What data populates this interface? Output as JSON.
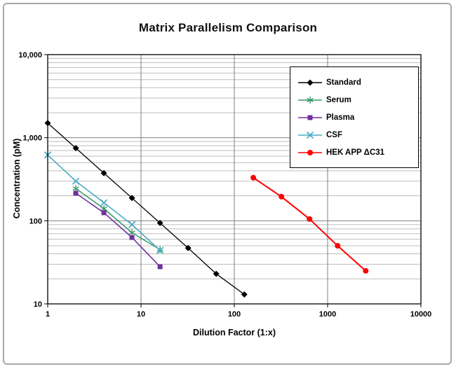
{
  "chart_data": {
    "type": "line",
    "title": "Matrix Parallelism Comparison",
    "xlabel": "Dilution Factor (1:x)",
    "ylabel": "Concentration (pM)",
    "xscale": "log",
    "yscale": "log",
    "xlim": [
      1,
      10000
    ],
    "ylim": [
      10,
      10000
    ],
    "xticks": {
      "values": [
        1,
        10,
        100,
        1000,
        10000
      ],
      "labels": [
        "1",
        "10",
        "100",
        "1000",
        "10000"
      ]
    },
    "yticks": {
      "values": [
        10,
        100,
        1000,
        10000
      ],
      "labels": [
        "10",
        "100",
        "1,000",
        "10,000"
      ]
    },
    "grid": {
      "horizontal_minor": true,
      "vertical_minor": false,
      "minor_color": "#bdbdbd",
      "major_color": "#7f7f7f"
    },
    "legend_position": "inside-top-right",
    "series": [
      {
        "name": "Standard",
        "marker": "diamond",
        "color": "#000000",
        "line_width": 1.3,
        "x": [
          1,
          2,
          4,
          8,
          16,
          32,
          64,
          128
        ],
        "y": [
          1500,
          750,
          375,
          188,
          94,
          47,
          23,
          13
        ]
      },
      {
        "name": "Serum",
        "marker": "star",
        "color": "#339966",
        "line_width": 1.5,
        "x": [
          2,
          4,
          8,
          16
        ],
        "y": [
          245,
          140,
          72,
          45
        ]
      },
      {
        "name": "Plasma",
        "marker": "square",
        "color": "#7030A0",
        "line_width": 1.6,
        "x": [
          2,
          4,
          8,
          16
        ],
        "y": [
          215,
          125,
          63,
          28
        ]
      },
      {
        "name": "CSF",
        "marker": "x",
        "color": "#4BACC6",
        "line_width": 1.6,
        "x": [
          1,
          2,
          4,
          8,
          16
        ],
        "y": [
          620,
          300,
          165,
          90,
          44
        ]
      },
      {
        "name": "HEK APP ΔC31",
        "marker": "circle",
        "color": "#FF0000",
        "line_width": 2,
        "x": [
          160,
          320,
          640,
          1280,
          2560
        ],
        "y": [
          330,
          195,
          105,
          50,
          25
        ]
      }
    ]
  }
}
